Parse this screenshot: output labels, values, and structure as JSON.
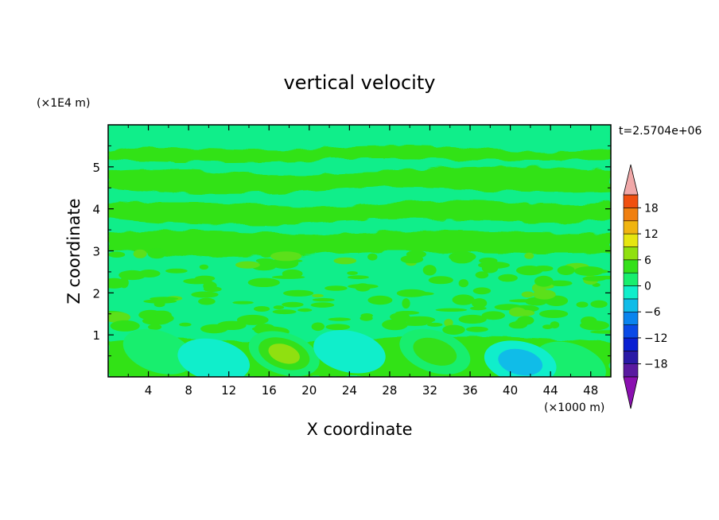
{
  "chart_data": {
    "type": "heatmap",
    "title": "vertical velocity",
    "xlabel": "X coordinate",
    "ylabel": "Z coordinate",
    "x_unit": "(×1000 m)",
    "y_unit": "(×1E4 m)",
    "time_label": "t=2.5704e+06",
    "xlim": [
      0,
      50
    ],
    "ylim": [
      0,
      6
    ],
    "x_ticks": [
      4,
      8,
      12,
      16,
      20,
      24,
      28,
      32,
      36,
      40,
      44,
      48
    ],
    "y_ticks": [
      1,
      2,
      3,
      4,
      5
    ],
    "grid": false,
    "colorbar": {
      "ticks": [
        18,
        12,
        6,
        0,
        -6,
        -12,
        -18
      ],
      "levels": [
        -21,
        -18,
        -15,
        -12,
        -9,
        -6,
        -3,
        0,
        3,
        6,
        9,
        12,
        15,
        18,
        21
      ],
      "colors": [
        "#5a1aa0",
        "#2a1aa6",
        "#0a20d2",
        "#0a4ae6",
        "#0a84ee",
        "#10bce8",
        "#10eecb",
        "#18ee6e",
        "#34e01a",
        "#90e010",
        "#e6e610",
        "#f0b410",
        "#f08010",
        "#f05010",
        "#e82010"
      ],
      "under_color": "#8a10b0",
      "over_color": "#f0a8a8"
    },
    "features": [
      {
        "x": 17.5,
        "z": 0.55,
        "value": 10,
        "label": "updraft"
      },
      {
        "x": 5.0,
        "z": 0.6,
        "value": 4,
        "label": "updraft"
      },
      {
        "x": 46.0,
        "z": 0.3,
        "value": 4,
        "label": "updraft"
      },
      {
        "x": 32.5,
        "z": 0.6,
        "value": 6,
        "label": "updraft"
      },
      {
        "x": 10.5,
        "z": 0.4,
        "value": -4,
        "label": "downdraft"
      },
      {
        "x": 24.0,
        "z": 0.6,
        "value": -3,
        "label": "downdraft"
      },
      {
        "x": 41.0,
        "z": 0.35,
        "value": -6,
        "label": "downdraft"
      }
    ]
  }
}
